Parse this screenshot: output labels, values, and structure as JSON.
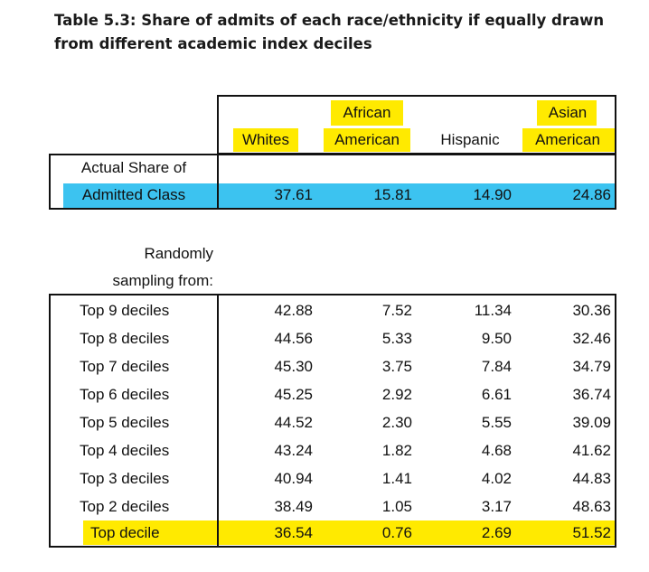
{
  "title": "Table 5.3: Share of admits of each race/ethnicity if equally drawn from different academic index deciles",
  "header": {
    "col1": {
      "line1": "",
      "line2": "Whites"
    },
    "col2": {
      "line1": "African",
      "line2": "American"
    },
    "col3": {
      "line1": "",
      "line2": "Hispanic"
    },
    "col4": {
      "line1": "Asian",
      "line2": "American"
    }
  },
  "actual": {
    "label_line1": "Actual Share of",
    "label_line2": "Admitted Class",
    "values": [
      "37.61",
      "15.81",
      "14.90",
      "24.86"
    ]
  },
  "sampling_label_line1": "Randomly",
  "sampling_label_line2": "sampling from:",
  "rows": [
    {
      "label": "Top 9 deciles",
      "values": [
        "42.88",
        "7.52",
        "11.34",
        "30.36"
      ]
    },
    {
      "label": "Top 8 deciles",
      "values": [
        "44.56",
        "5.33",
        "9.50",
        "32.46"
      ]
    },
    {
      "label": "Top 7 deciles",
      "values": [
        "45.30",
        "3.75",
        "7.84",
        "34.79"
      ]
    },
    {
      "label": "Top 6 deciles",
      "values": [
        "45.25",
        "2.92",
        "6.61",
        "36.74"
      ]
    },
    {
      "label": "Top 5 deciles",
      "values": [
        "44.52",
        "2.30",
        "5.55",
        "39.09"
      ]
    },
    {
      "label": "Top 4 deciles",
      "values": [
        "43.24",
        "1.82",
        "4.68",
        "41.62"
      ]
    },
    {
      "label": "Top 3 deciles",
      "values": [
        "40.94",
        "1.41",
        "4.02",
        "44.83"
      ]
    },
    {
      "label": "Top 2 deciles",
      "values": [
        "38.49",
        "1.05",
        "3.17",
        "48.63"
      ]
    },
    {
      "label": "Top decile",
      "values": [
        "36.54",
        "0.76",
        "2.69",
        "51.52"
      ]
    }
  ],
  "colors": {
    "highlight_yellow": "#ffea00",
    "highlight_blue": "#3cc3f0"
  }
}
